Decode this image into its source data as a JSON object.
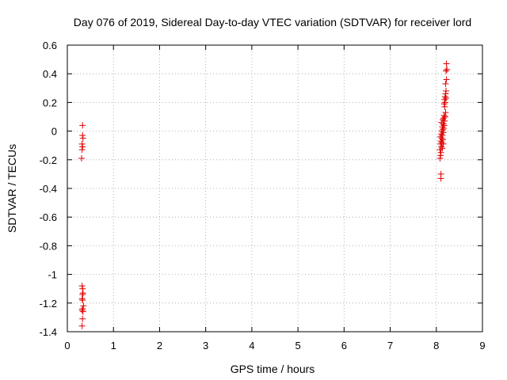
{
  "chart_data": {
    "type": "scatter",
    "title": "Day 076 of 2019, Sidereal Day-to-day VTEC variation (SDTVAR) for receiver lord",
    "xlabel": "GPS time / hours",
    "ylabel": "SDTVAR / TECUs",
    "xlim": [
      0,
      9
    ],
    "ylim": [
      -1.4,
      0.6
    ],
    "xticks": [
      0,
      1,
      2,
      3,
      4,
      5,
      6,
      7,
      8,
      9
    ],
    "yticks": [
      -1.4,
      -1.2,
      -1,
      -0.8,
      -0.6,
      -0.4,
      -0.2,
      0,
      0.2,
      0.4,
      0.6
    ],
    "xtick_labels": [
      "0",
      "1",
      "2",
      "3",
      "4",
      "5",
      "6",
      "7",
      "8",
      "9"
    ],
    "ytick_labels": [
      "-1.4",
      "-1.2",
      "-1",
      "-0.8",
      "-0.6",
      "-0.4",
      "-0.2",
      "0",
      "0.2",
      "0.4",
      "0.6"
    ],
    "grid": true,
    "marker": "plus",
    "marker_color": "#e00000",
    "series": [
      {
        "points": [
          [
            0.33,
            0.04
          ],
          [
            0.33,
            -0.03
          ],
          [
            0.34,
            -0.05
          ],
          [
            0.32,
            -0.09
          ],
          [
            0.33,
            -0.11
          ],
          [
            0.32,
            -0.13
          ],
          [
            0.31,
            -0.19
          ],
          [
            0.32,
            -1.08
          ],
          [
            0.33,
            -1.1
          ],
          [
            0.34,
            -1.13
          ],
          [
            0.33,
            -1.14
          ],
          [
            0.32,
            -1.17
          ],
          [
            0.33,
            -1.18
          ],
          [
            0.35,
            -1.22
          ],
          [
            0.33,
            -1.24
          ],
          [
            0.32,
            -1.25
          ],
          [
            0.34,
            -1.26
          ],
          [
            0.33,
            -1.31
          ],
          [
            0.32,
            -1.36
          ],
          [
            8.1,
            -0.3
          ],
          [
            8.1,
            -0.33
          ],
          [
            8.08,
            -0.19
          ],
          [
            8.09,
            -0.17
          ],
          [
            8.1,
            -0.15
          ],
          [
            8.08,
            -0.13
          ],
          [
            8.11,
            -0.11
          ],
          [
            8.09,
            -0.09
          ],
          [
            8.12,
            -0.08
          ],
          [
            8.1,
            -0.07
          ],
          [
            8.14,
            -0.06
          ],
          [
            8.12,
            -0.05
          ],
          [
            8.09,
            -0.04
          ],
          [
            8.13,
            -0.03
          ],
          [
            8.11,
            -0.02
          ],
          [
            8.15,
            -0.01
          ],
          [
            8.12,
            0.0
          ],
          [
            8.14,
            0.01
          ],
          [
            8.16,
            0.02
          ],
          [
            8.13,
            0.03
          ],
          [
            8.17,
            0.04
          ],
          [
            8.15,
            0.05
          ],
          [
            8.18,
            0.07
          ],
          [
            8.16,
            0.09
          ],
          [
            8.19,
            0.1
          ],
          [
            8.17,
            0.11
          ],
          [
            8.2,
            0.13
          ],
          [
            8.18,
            0.17
          ],
          [
            8.17,
            0.19
          ],
          [
            8.19,
            0.2
          ],
          [
            8.18,
            0.22
          ],
          [
            8.21,
            0.23
          ],
          [
            8.19,
            0.24
          ],
          [
            8.2,
            0.26
          ],
          [
            8.21,
            0.28
          ],
          [
            8.2,
            0.33
          ],
          [
            8.22,
            0.36
          ],
          [
            8.21,
            0.42
          ],
          [
            8.23,
            0.43
          ],
          [
            8.22,
            0.47
          ],
          [
            8.14,
            0.08
          ],
          [
            8.13,
            -0.12
          ],
          [
            8.15,
            -0.09
          ],
          [
            8.11,
            0.06
          ]
        ]
      }
    ]
  }
}
